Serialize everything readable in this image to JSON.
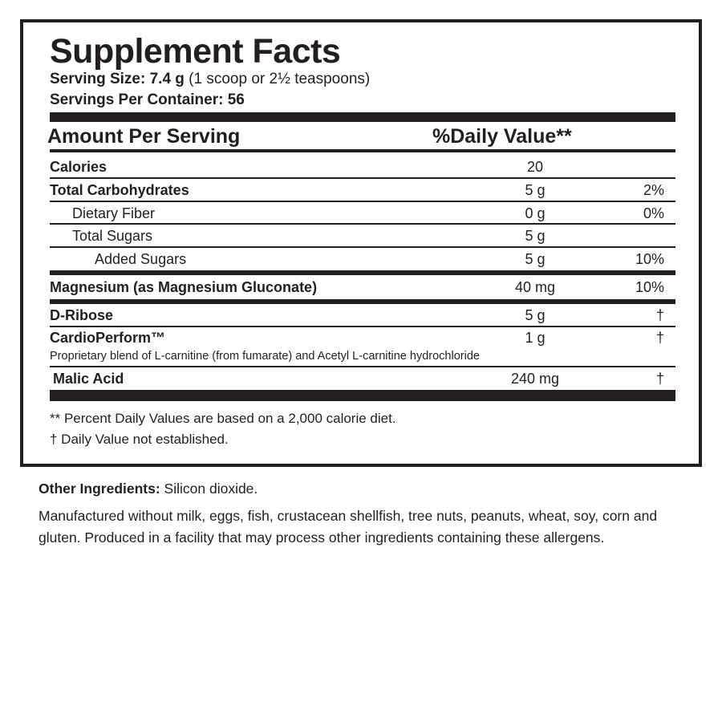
{
  "title": "Supplement Facts",
  "serving_size_label": "Serving Size: 7.4 g",
  "serving_size_detail": " (1 scoop or 2½ teaspoons)",
  "servings_per_container": "Servings Per Container: 56",
  "header": {
    "amount": "Amount Per Serving",
    "dv": "%Daily Value**"
  },
  "rows": [
    {
      "name": "Calories",
      "amount": "20",
      "dv": ""
    },
    {
      "name": "Total Carbohydrates",
      "amount": "5 g",
      "dv": "2%"
    },
    {
      "name": "Dietary Fiber",
      "amount": "0 g",
      "dv": "0%"
    },
    {
      "name": "Total Sugars",
      "amount": "5 g",
      "dv": ""
    },
    {
      "name": "Added Sugars",
      "amount": "5 g",
      "dv": "10%"
    },
    {
      "name": "Magnesium (as Magnesium Gluconate)",
      "amount": "40 mg",
      "dv": "10%"
    },
    {
      "name": "D-Ribose",
      "amount": "5 g",
      "dv": "†"
    },
    {
      "name": "CardioPerform™",
      "amount": "1 g",
      "dv": "†",
      "note": "Proprietary blend of L-carnitine (from fumarate) and Acetyl L-carnitine hydrochloride"
    },
    {
      "name": "Malic Acid",
      "amount": "240 mg",
      "dv": "†"
    }
  ],
  "footnotes": [
    "** Percent Daily Values are based on a 2,000 calorie diet.",
    "† Daily Value not established."
  ],
  "other_ingredients_label": "Other Ingredients:",
  "other_ingredients": " Silicon dioxide.",
  "allergen_statement": "Manufactured without milk, eggs, fish, crustacean shellfish, tree nuts, peanuts, wheat, soy, corn and gluten. Produced in a facility that may process other ingredients containing these allergens."
}
